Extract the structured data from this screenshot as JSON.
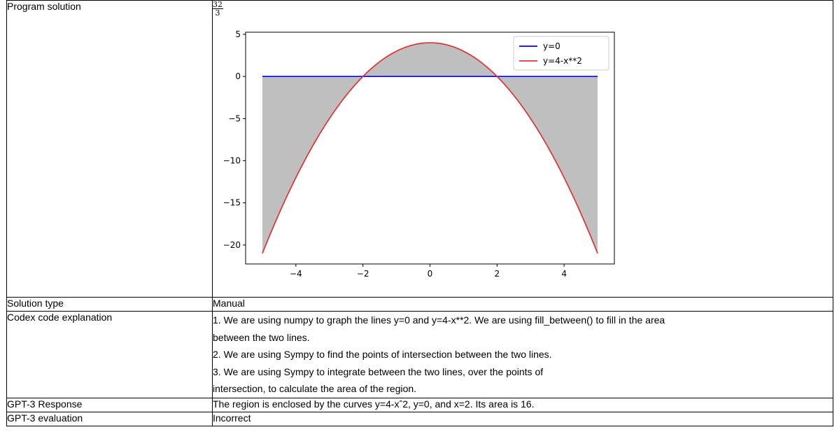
{
  "rows": {
    "program": {
      "label": "Program solution",
      "fraction": {
        "numerator": "32",
        "denominator": "3"
      }
    },
    "solution_type": {
      "label": "Solution type",
      "value": "Manual"
    },
    "codex": {
      "label": "Codex code explanation",
      "lines": [
        "1. We are using numpy to graph the lines y=0 and y=4-x**2. We are using fill_between() to fill in the area",
        "between the two lines.",
        "2. We are using Sympy to find the points of intersection between the two lines.",
        "3. We are using Sympy to integrate between the two lines, over the points of",
        "intersection, to calculate the area of the region."
      ]
    },
    "gpt3_response": {
      "label": "GPT-3 Response",
      "value": "The region is enclosed by the curves y=4-xˆ2, y=0, and x=2. Its area is 16."
    },
    "gpt3_eval": {
      "label": "GPT-3 evaluation",
      "value": "Incorrect"
    }
  },
  "chart_data": {
    "type": "line",
    "x_range": [
      -5,
      5
    ],
    "xlim": [
      -5.5,
      5.5
    ],
    "ylim": [
      -22.25,
      5.25
    ],
    "xticks": [
      -4,
      -2,
      0,
      2,
      4
    ],
    "xtick_labels": [
      "−4",
      "−2",
      "0",
      "2",
      "4"
    ],
    "yticks": [
      5,
      0,
      -5,
      -10,
      -15,
      -20
    ],
    "ytick_labels": [
      "5",
      "0",
      "−5",
      "−10",
      "−15",
      "−20"
    ],
    "series": [
      {
        "name": "y=0",
        "expression": "0",
        "color": "#0000ff"
      },
      {
        "name": "y=4-x**2",
        "expression": "4 - x^2",
        "color": "#dd3333"
      }
    ],
    "fill_between": {
      "color": "#bfbfbf"
    },
    "grid": false,
    "legend": "top-right"
  }
}
